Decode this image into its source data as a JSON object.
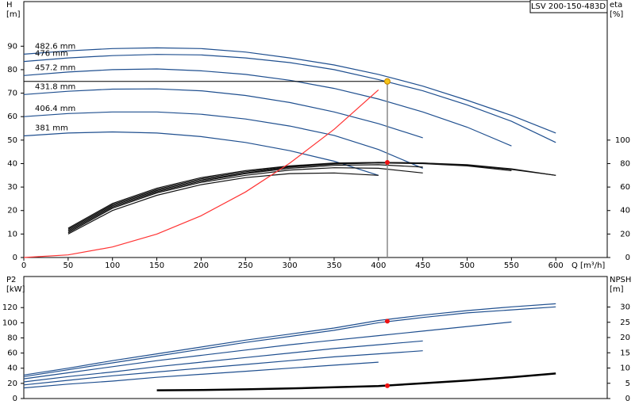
{
  "chart_data": [
    {
      "type": "line",
      "label": "LSV 200-150-483D",
      "y_title": "H",
      "y_unit": "[m]",
      "y2_title": "eta",
      "y2_unit": "[%]",
      "x_title": "Q [m³/h]",
      "x": [
        0,
        50,
        100,
        150,
        200,
        250,
        300,
        350,
        400,
        450,
        500,
        550,
        600
      ],
      "xlim": [
        0,
        658
      ],
      "xticks": [
        0,
        50,
        100,
        150,
        200,
        250,
        300,
        350,
        400,
        450,
        500,
        550,
        600
      ],
      "ylim": [
        0,
        109
      ],
      "yticks": [
        0,
        10,
        20,
        30,
        40,
        50,
        60,
        70,
        80,
        90
      ],
      "y2lim": [
        0,
        218
      ],
      "y2ticks": [
        0,
        20,
        40,
        60,
        80,
        100
      ],
      "series": [
        {
          "name": "482.6 mm",
          "color": "#1f4f8f",
          "values": [
            86.6,
            88,
            89,
            89.3,
            89,
            87.5,
            85,
            82,
            78,
            73,
            67,
            60.5,
            53
          ]
        },
        {
          "name": "476 mm",
          "color": "#1f4f8f",
          "values": [
            83.5,
            85,
            86,
            86.5,
            86.3,
            85,
            83,
            80,
            75.8,
            71,
            65,
            58,
            49
          ]
        },
        {
          "name": "457.2 mm",
          "color": "#1f4f8f",
          "values": [
            77.5,
            79,
            80,
            80.3,
            79.5,
            78,
            75.5,
            72,
            67.5,
            62,
            55.5,
            47.5,
            null
          ]
        },
        {
          "name": "431.8 mm",
          "color": "#1f4f8f",
          "values": [
            69.4,
            70.8,
            71.7,
            71.8,
            71,
            69,
            66,
            62,
            57,
            51,
            null,
            null,
            null
          ]
        },
        {
          "name": "406.4 mm",
          "color": "#1f4f8f",
          "values": [
            60,
            61.3,
            62,
            62,
            61,
            59,
            56,
            52,
            46,
            38,
            null,
            null,
            null
          ]
        },
        {
          "name": "381 mm",
          "color": "#1f4f8f",
          "values": [
            51.8,
            53,
            53.5,
            53,
            51.5,
            49,
            45.5,
            41,
            35,
            null,
            null,
            null,
            null
          ]
        },
        {
          "color": "#111111",
          "axis": "y2",
          "values": [
            null,
            25,
            46,
            59,
            68,
            74,
            78,
            80.5,
            81,
            80.5,
            78.5,
            75,
            70
          ]
        },
        {
          "color": "#111111",
          "axis": "y2",
          "values": [
            null,
            24,
            45,
            58,
            67,
            73,
            77.5,
            80,
            81,
            80.5,
            79,
            75.5,
            70
          ]
        },
        {
          "color": "#111111",
          "axis": "y2",
          "values": [
            null,
            23,
            44,
            57,
            66,
            72,
            77,
            79.5,
            80.5,
            80,
            78,
            74,
            null
          ]
        },
        {
          "color": "#111111",
          "axis": "y2",
          "values": [
            null,
            22,
            43,
            56,
            65,
            71.5,
            76,
            78.5,
            79,
            77,
            null,
            null,
            null
          ]
        },
        {
          "color": "#111111",
          "axis": "y2",
          "values": [
            null,
            21,
            42,
            55,
            64,
            70,
            74.5,
            76.5,
            76,
            72,
            null,
            null,
            null
          ]
        },
        {
          "color": "#111111",
          "axis": "y2",
          "values": [
            null,
            20,
            40,
            53,
            62,
            68,
            71.5,
            72,
            70,
            null,
            null,
            null,
            null
          ]
        },
        {
          "color": "#ff3333",
          "values": [
            0,
            1.1,
            4.5,
            10,
            17.8,
            27.9,
            40.2,
            54.6,
            71.4,
            null,
            null,
            null,
            null
          ]
        }
      ],
      "duty_point": {
        "x": 410,
        "y": 75,
        "y2": 81
      }
    },
    {
      "type": "line",
      "y_title": "P2",
      "y_unit": "[kW]",
      "y2_title": "NPSH",
      "y2_unit": "[m]",
      "x": [
        0,
        50,
        100,
        150,
        200,
        250,
        300,
        350,
        400,
        450,
        500,
        550,
        600
      ],
      "xlim": [
        0,
        658
      ],
      "ylim": [
        0,
        161
      ],
      "yticks": [
        0,
        20,
        40,
        60,
        80,
        100,
        120
      ],
      "y2lim": [
        0,
        40
      ],
      "y2ticks": [
        0,
        5,
        10,
        15,
        20,
        25,
        30
      ],
      "series": [
        {
          "color": "#1f4f8f",
          "values": [
            31,
            40,
            50,
            59,
            68,
            77,
            85,
            93,
            103,
            110,
            116,
            121,
            125
          ]
        },
        {
          "color": "#1f4f8f",
          "values": [
            29,
            38,
            47,
            56,
            65,
            74,
            82,
            90,
            100,
            107,
            113,
            117,
            121
          ]
        },
        {
          "color": "#1f4f8f",
          "values": [
            26,
            34,
            42,
            50,
            57,
            64,
            71,
            77,
            83,
            89,
            95,
            101,
            null
          ]
        },
        {
          "color": "#1f4f8f",
          "values": [
            22,
            29,
            35,
            42,
            48,
            54,
            60,
            66,
            71,
            76,
            null,
            null,
            null
          ]
        },
        {
          "color": "#1f4f8f",
          "values": [
            18,
            24,
            30,
            35,
            40,
            45,
            50,
            55,
            59,
            63,
            null,
            null,
            null
          ]
        },
        {
          "color": "#1f4f8f",
          "values": [
            14,
            19,
            23,
            28,
            32,
            36,
            40,
            44,
            48,
            null,
            null,
            null,
            null
          ]
        },
        {
          "color": "#000000",
          "axis": "y2",
          "width": 2.5,
          "values": [
            null,
            null,
            null,
            2.7,
            2.8,
            3.0,
            3.3,
            3.7,
            4.1,
            5.0,
            5.9,
            7.0,
            8.2
          ]
        }
      ],
      "duty_point": {
        "x": 410,
        "y": 102,
        "y2": 4.2
      }
    }
  ]
}
